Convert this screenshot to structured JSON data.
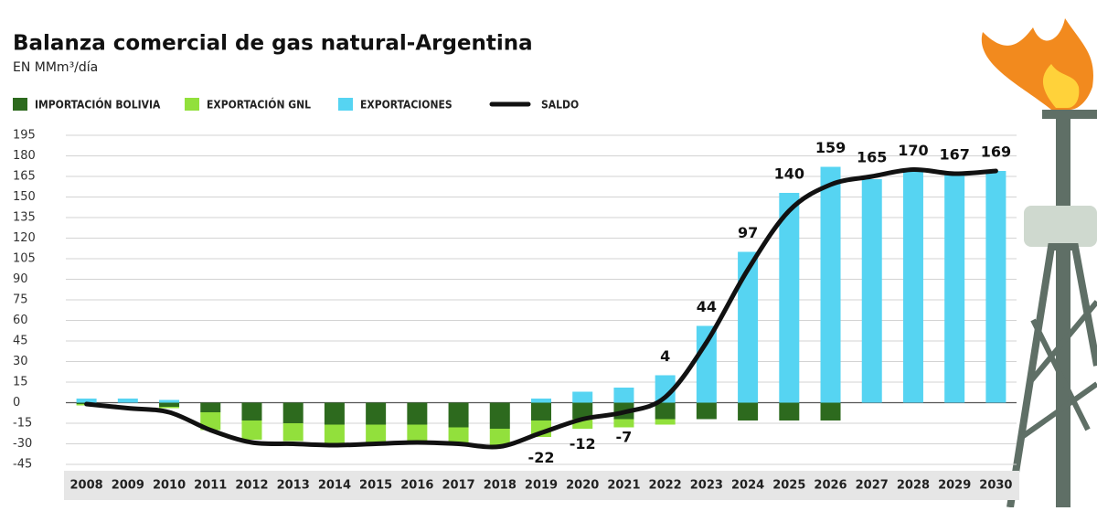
{
  "chart_data": {
    "type": "bar",
    "title": "Balanza comercial de gas natural-Argentina",
    "subtitle": "EN MMm³/día",
    "categories": [
      "2008",
      "2009",
      "2010",
      "2011",
      "2012",
      "2013",
      "2014",
      "2015",
      "2016",
      "2017",
      "2018",
      "2019",
      "2020",
      "2021",
      "2022",
      "2023",
      "2024",
      "2025",
      "2026",
      "2027",
      "2028",
      "2029",
      "2030"
    ],
    "series": [
      {
        "name": "IMPORTACIÓN BOLIVIA",
        "color": "#2d6a1e",
        "values": [
          -1,
          0,
          -3,
          -7,
          -13,
          -15,
          -16,
          -16,
          -16,
          -18,
          -19,
          -13,
          -12,
          -12,
          -12,
          -12,
          -13,
          -13,
          -13,
          0,
          0,
          0,
          0
        ]
      },
      {
        "name": "EXPORTACIÓN GNL",
        "color": "#92e03c",
        "values": [
          -1,
          0,
          -1,
          -13,
          -14,
          -13,
          -14,
          -13,
          -13,
          -12,
          -13,
          -12,
          -7,
          -6,
          -4,
          0,
          0,
          0,
          0,
          0,
          0,
          0,
          0
        ]
      },
      {
        "name": "EXPORTACIONES",
        "color": "#56d4f2",
        "values": [
          3,
          3,
          2,
          0,
          0,
          0,
          0,
          0,
          0,
          0,
          0,
          3,
          8,
          11,
          20,
          56,
          110,
          153,
          172,
          163,
          170,
          167,
          169
        ]
      },
      {
        "name": "SALDO",
        "color": "#111111",
        "type": "line",
        "values": [
          -1,
          -4,
          -7,
          -20,
          -29,
          -30,
          -31,
          -30,
          -29,
          -30,
          -32,
          -22,
          -12,
          -7,
          4,
          44,
          97,
          140,
          159,
          165,
          170,
          167,
          169
        ],
        "value_labels": [
          null,
          null,
          null,
          null,
          null,
          null,
          null,
          null,
          null,
          null,
          null,
          "-22",
          "-12",
          "-7",
          "4",
          "44",
          "97",
          "140",
          "159",
          "165",
          "170",
          "167",
          "169"
        ]
      }
    ],
    "ylim": [
      -45,
      195
    ],
    "yticks": [
      -45,
      -30,
      -15,
      0,
      15,
      30,
      45,
      60,
      75,
      90,
      105,
      120,
      135,
      150,
      165,
      180,
      195
    ],
    "grid": true,
    "stacked": true,
    "legend": "top"
  }
}
